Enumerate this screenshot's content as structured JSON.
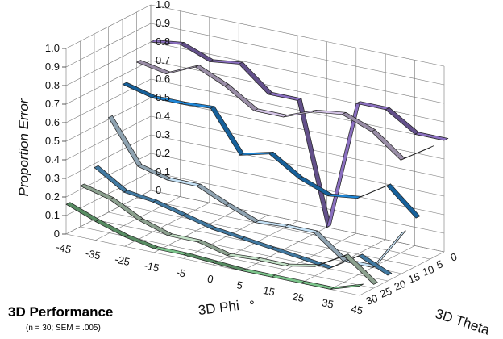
{
  "chart_data": {
    "type": "line",
    "title": "3D Performance",
    "subtitle": "(n = 30; SEM = .005)",
    "xlabel": "3D Phi",
    "xlabel_symbol": "°",
    "zlabel": "3D Theta",
    "ylabel": "Proportion Error",
    "x_ticks": [
      "-45",
      "-35",
      "-25",
      "-15",
      "-5",
      "0",
      "5",
      "15",
      "25",
      "35",
      "45"
    ],
    "y_ticks": [
      "0",
      "0.1",
      "0.2",
      "0.3",
      "0.4",
      "0.5",
      "0.6",
      "0.7",
      "0.8",
      "0.9",
      "1.0"
    ],
    "z_ticks": [
      "0",
      "5",
      "10",
      "15",
      "20",
      "25",
      "30"
    ],
    "ylim": [
      0,
      1
    ],
    "grid": true,
    "series": [
      {
        "theta": 30,
        "color": "#7ac38a",
        "values": [
          0.16,
          0.1,
          0.05,
          0.02,
          0.02,
          0.01,
          0.0,
          0.0,
          0.0,
          0.0,
          0.05
        ]
      },
      {
        "theta": 25,
        "color": "#c2e0c6",
        "values": [
          0.22,
          0.18,
          0.1,
          0.05,
          0.05,
          0.01,
          0.02,
          0.02,
          0.05,
          0.14,
          0.02
        ]
      },
      {
        "theta": 20,
        "color": "#5aa8e0",
        "values": [
          0.28,
          0.18,
          0.16,
          0.12,
          0.08,
          0.06,
          0.04,
          0.02,
          0.0,
          0.1,
          0.03
        ]
      },
      {
        "theta": 15,
        "color": "#c6e2f6",
        "values": [
          0.51,
          0.28,
          0.24,
          0.24,
          0.17,
          0.11,
          0.12,
          0.12,
          0.0,
          0.0,
          0.22
        ]
      },
      {
        "theta": 10,
        "color": "#1f86d6",
        "values": [
          0.65,
          0.61,
          0.61,
          0.62,
          0.4,
          0.44,
          0.34,
          0.28,
          0.3,
          0.4,
          0.26
        ]
      },
      {
        "theta": 5,
        "color": "#d4c4e6",
        "values": [
          0.73,
          0.7,
          0.77,
          0.7,
          0.6,
          0.6,
          0.66,
          0.68,
          0.62,
          0.5,
          0.6
        ]
      },
      {
        "theta": 0,
        "color": "#8a6fbf",
        "values": [
          0.8,
          0.82,
          0.76,
          0.78,
          0.65,
          0.65,
          0.0,
          0.7,
          0.7,
          0.6,
          0.6
        ]
      }
    ]
  }
}
